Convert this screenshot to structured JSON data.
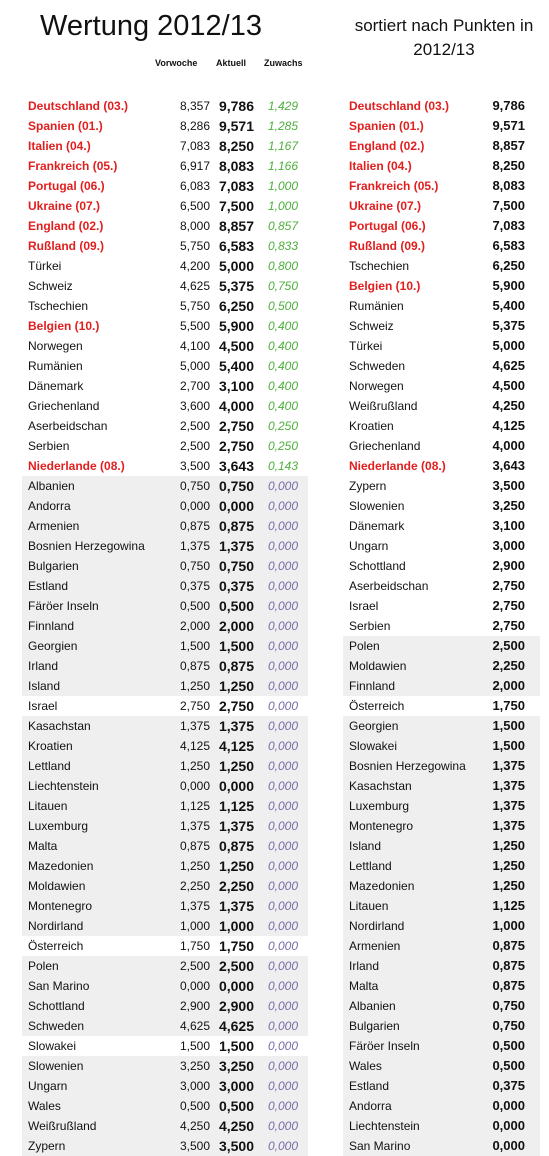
{
  "title": "Wertung 2012/13",
  "subtitle": "sortiert nach Punkten in 2012/13",
  "headers": {
    "prev": "Vorwoche",
    "cur": "Aktuell",
    "gain": "Zuwachs"
  },
  "colors": {
    "highlight": "#e21e1e",
    "gain_positive": "#4caf3b",
    "gain_zero": "#7a6ba8",
    "shade": "#efefef"
  },
  "left_rows": [
    {
      "name": "Deutschland (03.)",
      "prev": "8,357",
      "cur": "9,786",
      "gain": "1,429",
      "red": true,
      "shade": false
    },
    {
      "name": "Spanien (01.)",
      "prev": "8,286",
      "cur": "9,571",
      "gain": "1,285",
      "red": true,
      "shade": false
    },
    {
      "name": "Italien (04.)",
      "prev": "7,083",
      "cur": "8,250",
      "gain": "1,167",
      "red": true,
      "shade": false
    },
    {
      "name": "Frankreich (05.)",
      "prev": "6,917",
      "cur": "8,083",
      "gain": "1,166",
      "red": true,
      "shade": false
    },
    {
      "name": "Portugal (06.)",
      "prev": "6,083",
      "cur": "7,083",
      "gain": "1,000",
      "red": true,
      "shade": false
    },
    {
      "name": "Ukraine (07.)",
      "prev": "6,500",
      "cur": "7,500",
      "gain": "1,000",
      "red": true,
      "shade": false
    },
    {
      "name": "England (02.)",
      "prev": "8,000",
      "cur": "8,857",
      "gain": "0,857",
      "red": true,
      "shade": false
    },
    {
      "name": "Rußland (09.)",
      "prev": "5,750",
      "cur": "6,583",
      "gain": "0,833",
      "red": true,
      "shade": false
    },
    {
      "name": "Türkei",
      "prev": "4,200",
      "cur": "5,000",
      "gain": "0,800",
      "red": false,
      "shade": false
    },
    {
      "name": "Schweiz",
      "prev": "4,625",
      "cur": "5,375",
      "gain": "0,750",
      "red": false,
      "shade": false
    },
    {
      "name": "Tschechien",
      "prev": "5,750",
      "cur": "6,250",
      "gain": "0,500",
      "red": false,
      "shade": false
    },
    {
      "name": "Belgien (10.)",
      "prev": "5,500",
      "cur": "5,900",
      "gain": "0,400",
      "red": true,
      "shade": false
    },
    {
      "name": "Norwegen",
      "prev": "4,100",
      "cur": "4,500",
      "gain": "0,400",
      "red": false,
      "shade": false
    },
    {
      "name": "Rumänien",
      "prev": "5,000",
      "cur": "5,400",
      "gain": "0,400",
      "red": false,
      "shade": false
    },
    {
      "name": "Dänemark",
      "prev": "2,700",
      "cur": "3,100",
      "gain": "0,400",
      "red": false,
      "shade": false
    },
    {
      "name": "Griechenland",
      "prev": "3,600",
      "cur": "4,000",
      "gain": "0,400",
      "red": false,
      "shade": false
    },
    {
      "name": "Aserbeidschan",
      "prev": "2,500",
      "cur": "2,750",
      "gain": "0,250",
      "red": false,
      "shade": false
    },
    {
      "name": "Serbien",
      "prev": "2,500",
      "cur": "2,750",
      "gain": "0,250",
      "red": false,
      "shade": false
    },
    {
      "name": "Niederlande (08.)",
      "prev": "3,500",
      "cur": "3,643",
      "gain": "0,143",
      "red": true,
      "shade": false
    },
    {
      "name": "Albanien",
      "prev": "0,750",
      "cur": "0,750",
      "gain": "0,000",
      "red": false,
      "shade": true
    },
    {
      "name": "Andorra",
      "prev": "0,000",
      "cur": "0,000",
      "gain": "0,000",
      "red": false,
      "shade": true
    },
    {
      "name": "Armenien",
      "prev": "0,875",
      "cur": "0,875",
      "gain": "0,000",
      "red": false,
      "shade": true
    },
    {
      "name": "Bosnien Herzegowina",
      "prev": "1,375",
      "cur": "1,375",
      "gain": "0,000",
      "red": false,
      "shade": true
    },
    {
      "name": "Bulgarien",
      "prev": "0,750",
      "cur": "0,750",
      "gain": "0,000",
      "red": false,
      "shade": true
    },
    {
      "name": "Estland",
      "prev": "0,375",
      "cur": "0,375",
      "gain": "0,000",
      "red": false,
      "shade": true
    },
    {
      "name": "Färöer Inseln",
      "prev": "0,500",
      "cur": "0,500",
      "gain": "0,000",
      "red": false,
      "shade": true
    },
    {
      "name": "Finnland",
      "prev": "2,000",
      "cur": "2,000",
      "gain": "0,000",
      "red": false,
      "shade": true
    },
    {
      "name": "Georgien",
      "prev": "1,500",
      "cur": "1,500",
      "gain": "0,000",
      "red": false,
      "shade": true
    },
    {
      "name": "Irland",
      "prev": "0,875",
      "cur": "0,875",
      "gain": "0,000",
      "red": false,
      "shade": true
    },
    {
      "name": "Island",
      "prev": "1,250",
      "cur": "1,250",
      "gain": "0,000",
      "red": false,
      "shade": true
    },
    {
      "name": "Israel",
      "prev": "2,750",
      "cur": "2,750",
      "gain": "0,000",
      "red": false,
      "shade": false
    },
    {
      "name": "Kasachstan",
      "prev": "1,375",
      "cur": "1,375",
      "gain": "0,000",
      "red": false,
      "shade": true
    },
    {
      "name": "Kroatien",
      "prev": "4,125",
      "cur": "4,125",
      "gain": "0,000",
      "red": false,
      "shade": true
    },
    {
      "name": "Lettland",
      "prev": "1,250",
      "cur": "1,250",
      "gain": "0,000",
      "red": false,
      "shade": true
    },
    {
      "name": "Liechtenstein",
      "prev": "0,000",
      "cur": "0,000",
      "gain": "0,000",
      "red": false,
      "shade": true
    },
    {
      "name": "Litauen",
      "prev": "1,125",
      "cur": "1,125",
      "gain": "0,000",
      "red": false,
      "shade": true
    },
    {
      "name": "Luxemburg",
      "prev": "1,375",
      "cur": "1,375",
      "gain": "0,000",
      "red": false,
      "shade": true
    },
    {
      "name": "Malta",
      "prev": "0,875",
      "cur": "0,875",
      "gain": "0,000",
      "red": false,
      "shade": true
    },
    {
      "name": "Mazedonien",
      "prev": "1,250",
      "cur": "1,250",
      "gain": "0,000",
      "red": false,
      "shade": true
    },
    {
      "name": "Moldawien",
      "prev": "2,250",
      "cur": "2,250",
      "gain": "0,000",
      "red": false,
      "shade": true
    },
    {
      "name": "Montenegro",
      "prev": "1,375",
      "cur": "1,375",
      "gain": "0,000",
      "red": false,
      "shade": true
    },
    {
      "name": "Nordirland",
      "prev": "1,000",
      "cur": "1,000",
      "gain": "0,000",
      "red": false,
      "shade": true
    },
    {
      "name": "Österreich",
      "prev": "1,750",
      "cur": "1,750",
      "gain": "0,000",
      "red": false,
      "shade": false
    },
    {
      "name": "Polen",
      "prev": "2,500",
      "cur": "2,500",
      "gain": "0,000",
      "red": false,
      "shade": true
    },
    {
      "name": "San Marino",
      "prev": "0,000",
      "cur": "0,000",
      "gain": "0,000",
      "red": false,
      "shade": true
    },
    {
      "name": "Schottland",
      "prev": "2,900",
      "cur": "2,900",
      "gain": "0,000",
      "red": false,
      "shade": true
    },
    {
      "name": "Schweden",
      "prev": "4,625",
      "cur": "4,625",
      "gain": "0,000",
      "red": false,
      "shade": true
    },
    {
      "name": "Slowakei",
      "prev": "1,500",
      "cur": "1,500",
      "gain": "0,000",
      "red": false,
      "shade": false
    },
    {
      "name": "Slowenien",
      "prev": "3,250",
      "cur": "3,250",
      "gain": "0,000",
      "red": false,
      "shade": true
    },
    {
      "name": "Ungarn",
      "prev": "3,000",
      "cur": "3,000",
      "gain": "0,000",
      "red": false,
      "shade": true
    },
    {
      "name": "Wales",
      "prev": "0,500",
      "cur": "0,500",
      "gain": "0,000",
      "red": false,
      "shade": true
    },
    {
      "name": "Weißrußland",
      "prev": "4,250",
      "cur": "4,250",
      "gain": "0,000",
      "red": false,
      "shade": true
    },
    {
      "name": "Zypern",
      "prev": "3,500",
      "cur": "3,500",
      "gain": "0,000",
      "red": false,
      "shade": true
    }
  ],
  "right_rows": [
    {
      "name": "Deutschland (03.)",
      "pts": "9,786",
      "red": true,
      "shade": false
    },
    {
      "name": "Spanien (01.)",
      "pts": "9,571",
      "red": true,
      "shade": false
    },
    {
      "name": "England (02.)",
      "pts": "8,857",
      "red": true,
      "shade": false
    },
    {
      "name": "Italien (04.)",
      "pts": "8,250",
      "red": true,
      "shade": false
    },
    {
      "name": "Frankreich (05.)",
      "pts": "8,083",
      "red": true,
      "shade": false
    },
    {
      "name": "Ukraine (07.)",
      "pts": "7,500",
      "red": true,
      "shade": false
    },
    {
      "name": "Portugal (06.)",
      "pts": "7,083",
      "red": true,
      "shade": false
    },
    {
      "name": "Rußland (09.)",
      "pts": "6,583",
      "red": true,
      "shade": false
    },
    {
      "name": "Tschechien",
      "pts": "6,250",
      "red": false,
      "shade": false
    },
    {
      "name": "Belgien (10.)",
      "pts": "5,900",
      "red": true,
      "shade": false
    },
    {
      "name": "Rumänien",
      "pts": "5,400",
      "red": false,
      "shade": false
    },
    {
      "name": "Schweiz",
      "pts": "5,375",
      "red": false,
      "shade": false
    },
    {
      "name": "Türkei",
      "pts": "5,000",
      "red": false,
      "shade": false
    },
    {
      "name": "Schweden",
      "pts": "4,625",
      "red": false,
      "shade": false
    },
    {
      "name": "Norwegen",
      "pts": "4,500",
      "red": false,
      "shade": false
    },
    {
      "name": "Weißrußland",
      "pts": "4,250",
      "red": false,
      "shade": false
    },
    {
      "name": "Kroatien",
      "pts": "4,125",
      "red": false,
      "shade": false
    },
    {
      "name": "Griechenland",
      "pts": "4,000",
      "red": false,
      "shade": false
    },
    {
      "name": "Niederlande (08.)",
      "pts": "3,643",
      "red": true,
      "shade": false
    },
    {
      "name": "Zypern",
      "pts": "3,500",
      "red": false,
      "shade": false
    },
    {
      "name": "Slowenien",
      "pts": "3,250",
      "red": false,
      "shade": false
    },
    {
      "name": "Dänemark",
      "pts": "3,100",
      "red": false,
      "shade": false
    },
    {
      "name": "Ungarn",
      "pts": "3,000",
      "red": false,
      "shade": false
    },
    {
      "name": "Schottland",
      "pts": "2,900",
      "red": false,
      "shade": false
    },
    {
      "name": "Aserbeidschan",
      "pts": "2,750",
      "red": false,
      "shade": false
    },
    {
      "name": "Israel",
      "pts": "2,750",
      "red": false,
      "shade": false
    },
    {
      "name": "Serbien",
      "pts": "2,750",
      "red": false,
      "shade": false
    },
    {
      "name": "Polen",
      "pts": "2,500",
      "red": false,
      "shade": true
    },
    {
      "name": "Moldawien",
      "pts": "2,250",
      "red": false,
      "shade": true
    },
    {
      "name": "Finnland",
      "pts": "2,000",
      "red": false,
      "shade": true
    },
    {
      "name": "Österreich",
      "pts": "1,750",
      "red": false,
      "shade": false
    },
    {
      "name": "Georgien",
      "pts": "1,500",
      "red": false,
      "shade": true
    },
    {
      "name": "Slowakei",
      "pts": "1,500",
      "red": false,
      "shade": true
    },
    {
      "name": "Bosnien Herzegowina",
      "pts": "1,375",
      "red": false,
      "shade": true
    },
    {
      "name": "Kasachstan",
      "pts": "1,375",
      "red": false,
      "shade": true
    },
    {
      "name": "Luxemburg",
      "pts": "1,375",
      "red": false,
      "shade": true
    },
    {
      "name": "Montenegro",
      "pts": "1,375",
      "red": false,
      "shade": true
    },
    {
      "name": "Island",
      "pts": "1,250",
      "red": false,
      "shade": true
    },
    {
      "name": "Lettland",
      "pts": "1,250",
      "red": false,
      "shade": true
    },
    {
      "name": "Mazedonien",
      "pts": "1,250",
      "red": false,
      "shade": true
    },
    {
      "name": "Litauen",
      "pts": "1,125",
      "red": false,
      "shade": true
    },
    {
      "name": "Nordirland",
      "pts": "1,000",
      "red": false,
      "shade": true
    },
    {
      "name": "Armenien",
      "pts": "0,875",
      "red": false,
      "shade": true
    },
    {
      "name": "Irland",
      "pts": "0,875",
      "red": false,
      "shade": true
    },
    {
      "name": "Malta",
      "pts": "0,875",
      "red": false,
      "shade": true
    },
    {
      "name": "Albanien",
      "pts": "0,750",
      "red": false,
      "shade": true
    },
    {
      "name": "Bulgarien",
      "pts": "0,750",
      "red": false,
      "shade": true
    },
    {
      "name": "Färöer Inseln",
      "pts": "0,500",
      "red": false,
      "shade": true
    },
    {
      "name": "Wales",
      "pts": "0,500",
      "red": false,
      "shade": true
    },
    {
      "name": "Estland",
      "pts": "0,375",
      "red": false,
      "shade": true
    },
    {
      "name": "Andorra",
      "pts": "0,000",
      "red": false,
      "shade": true
    },
    {
      "name": "Liechtenstein",
      "pts": "0,000",
      "red": false,
      "shade": true
    },
    {
      "name": "San Marino",
      "pts": "0,000",
      "red": false,
      "shade": true
    }
  ]
}
